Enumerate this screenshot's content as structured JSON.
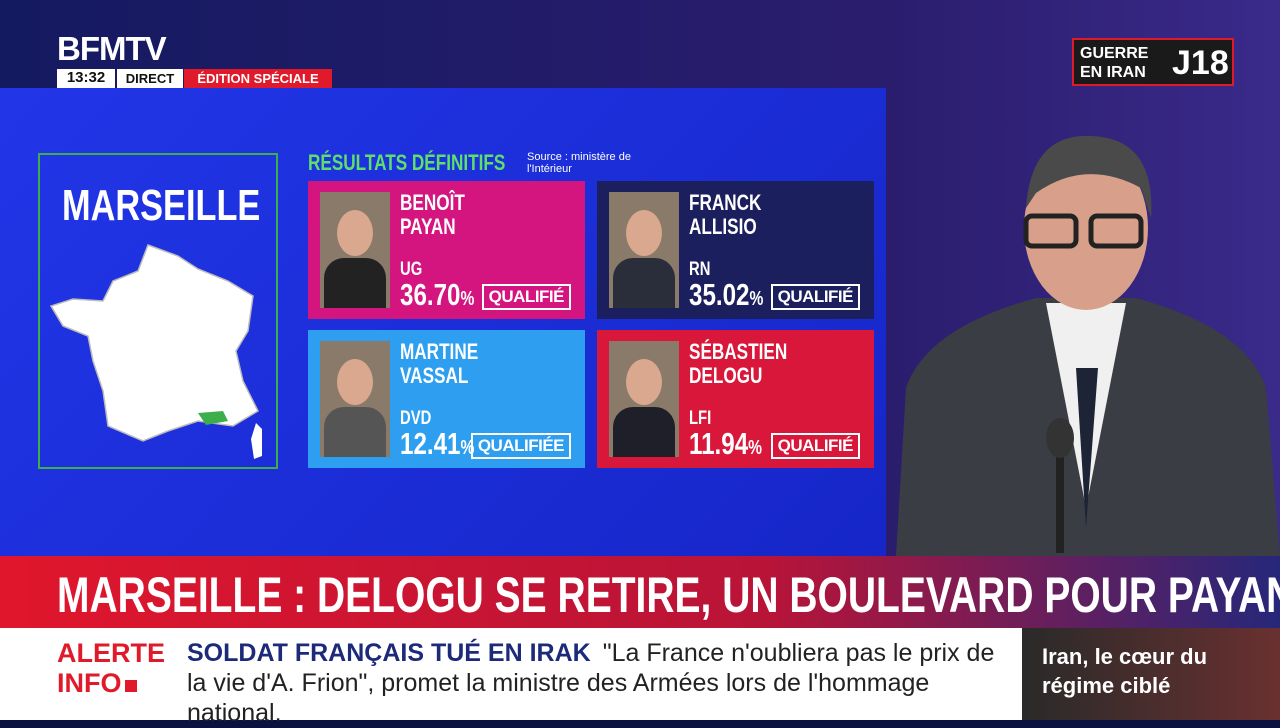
{
  "header": {
    "logo": "BFMTV",
    "time": "13:32",
    "live": "DIRECT",
    "edition": "ÉDITION SPÉCIALE",
    "badge": {
      "topic": "GUERRE EN IRAN",
      "day": "J18"
    }
  },
  "map_panel": {
    "city": "MARSEILLE"
  },
  "results": {
    "title": "RÉSULTATS DÉFINITIFS",
    "source": "Source : ministère de l'Intérieur",
    "candidates": [
      {
        "first_name": "BENOÎT",
        "last_name": "PAYAN",
        "party": "UG",
        "score": "36.70",
        "unit": "%",
        "status": "QUALIFIÉ"
      },
      {
        "first_name": "FRANCK",
        "last_name": "ALLISIO",
        "party": "RN",
        "score": "35.02",
        "unit": "%",
        "status": "QUALIFIÉ"
      },
      {
        "first_name": "MARTINE",
        "last_name": "VASSAL",
        "party": "DVD",
        "score": "12.41",
        "unit": "%",
        "status": "QUALIFIÉE"
      },
      {
        "first_name": "SÉBASTIEN",
        "last_name": "DELOGU",
        "party": "LFI",
        "score": "11.94",
        "unit": "%",
        "status": "QUALIFIÉ"
      }
    ]
  },
  "headline": "MARSEILLE : DELOGU SE RETIRE, UN BOULEVARD POUR PAYAN ?",
  "ticker": {
    "label_top": "ALERTE",
    "label_bottom": "INFO",
    "title": "SOLDAT FRANÇAIS TUÉ EN IRAK",
    "text": "\"La France n'oubliera pas le prix de la vie d'A. Frion\", promet la ministre des Armées lors de l'hommage national.",
    "side": "Iran, le cœur du régime ciblé"
  }
}
